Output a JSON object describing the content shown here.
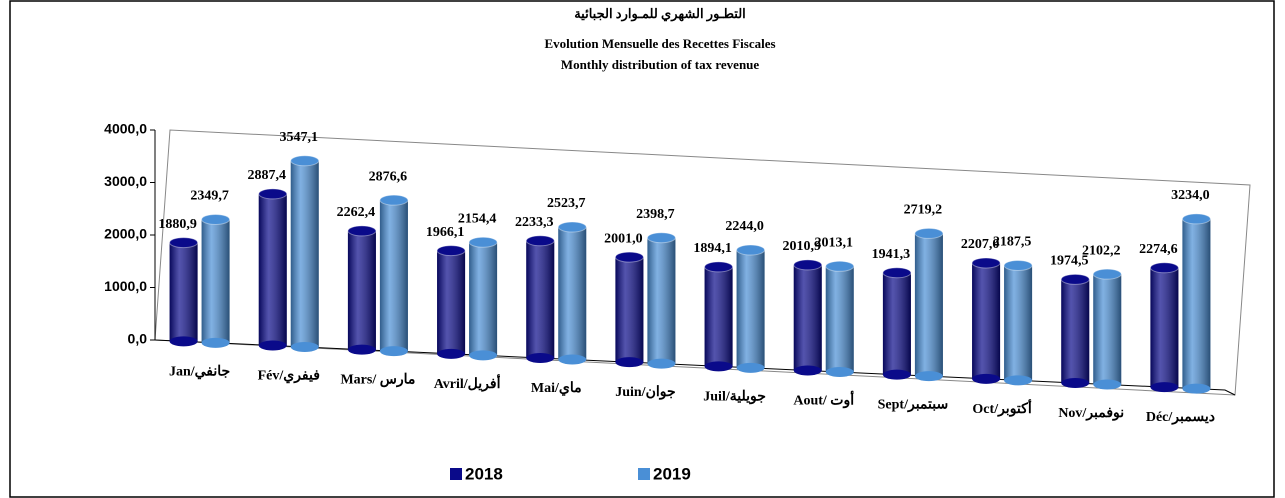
{
  "chart_data": {
    "type": "bar3d",
    "title": "التطـور الشهري للمـوارد الجبائية",
    "subtitle": "Evolution Mensuelle des Recettes Fiscales",
    "subtitle2": "Monthly distribution of tax revenue",
    "categories": [
      "Jan/جانفي",
      "Fév/فيفري",
      "Mars/ مارس",
      "Avril/أفريل",
      "Mai/ماي",
      "Juin/جوان",
      "Juil/جويلية",
      "Aout/ أوت",
      "Sept/سبتمبر",
      "Oct/أكتوبر",
      "Nov/نوفمبر",
      "Déc/ديسمبر"
    ],
    "series": [
      {
        "name": "2018",
        "color": "#0a0a8a",
        "values": [
          1880.9,
          2887.4,
          2262.4,
          1966.1,
          2233.3,
          2001.0,
          1894.1,
          2010.9,
          1941.3,
          2207.0,
          1974.5,
          2274.6
        ],
        "value_labels": [
          "1880,9",
          "2887,4",
          "2262,4",
          "1966,1",
          "2233,3",
          "2001,0",
          "1894,1",
          "2010,9",
          "1941,3",
          "2207,0",
          "1974,5",
          "2274,6"
        ]
      },
      {
        "name": "2019",
        "color": "#4a8fd6",
        "values": [
          2349.7,
          3547.1,
          2876.6,
          2154.4,
          2523.7,
          2398.7,
          2244.0,
          2013.1,
          2719.2,
          2187.5,
          2102.2,
          3234.0
        ],
        "value_labels": [
          "2349,7",
          "3547,1",
          "2876,6",
          "2154,4",
          "2523,7",
          "2398,7",
          "2244,0",
          "2013,1",
          "2719,2",
          "2187,5",
          "2102,2",
          "3234,0"
        ]
      }
    ],
    "ylim": [
      0,
      4000
    ],
    "yticks": [
      {
        "value": 0,
        "label": "0,0"
      },
      {
        "value": 1000,
        "label": "1000,0"
      },
      {
        "value": 2000,
        "label": "2000,0"
      },
      {
        "value": 3000,
        "label": "3000,0"
      },
      {
        "value": 4000,
        "label": "4000,0"
      }
    ],
    "legend": "bottom"
  }
}
